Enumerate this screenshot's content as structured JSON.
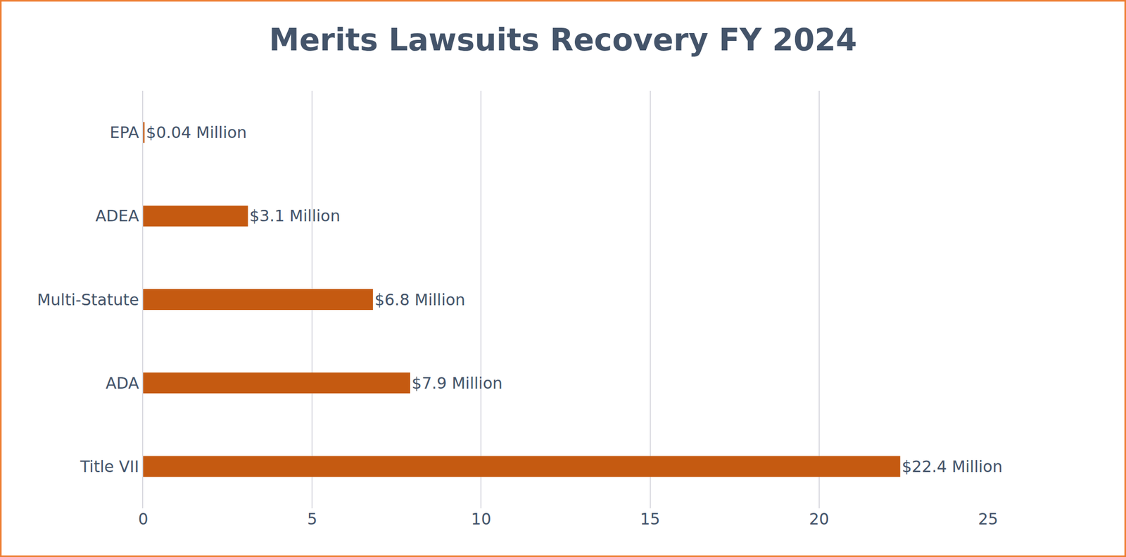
{
  "chart_data": {
    "type": "bar",
    "title": "Merits Lawsuits Recovery FY 2024",
    "orientation": "horizontal",
    "categories": [
      "EPA",
      "ADEA",
      "Multi-Statute",
      "ADA",
      "Title VII"
    ],
    "values": [
      0.04,
      3.1,
      6.8,
      7.9,
      22.4
    ],
    "value_labels": [
      "$0.04 Million",
      "$3.1 Million",
      "$6.8 Million",
      "$7.9 Million",
      "$22.4 Million"
    ],
    "data_labels": true,
    "color": "#c55a11",
    "xlim": [
      0,
      25
    ],
    "xticks": [
      0,
      5,
      10,
      15,
      20,
      25
    ],
    "grid": true
  }
}
